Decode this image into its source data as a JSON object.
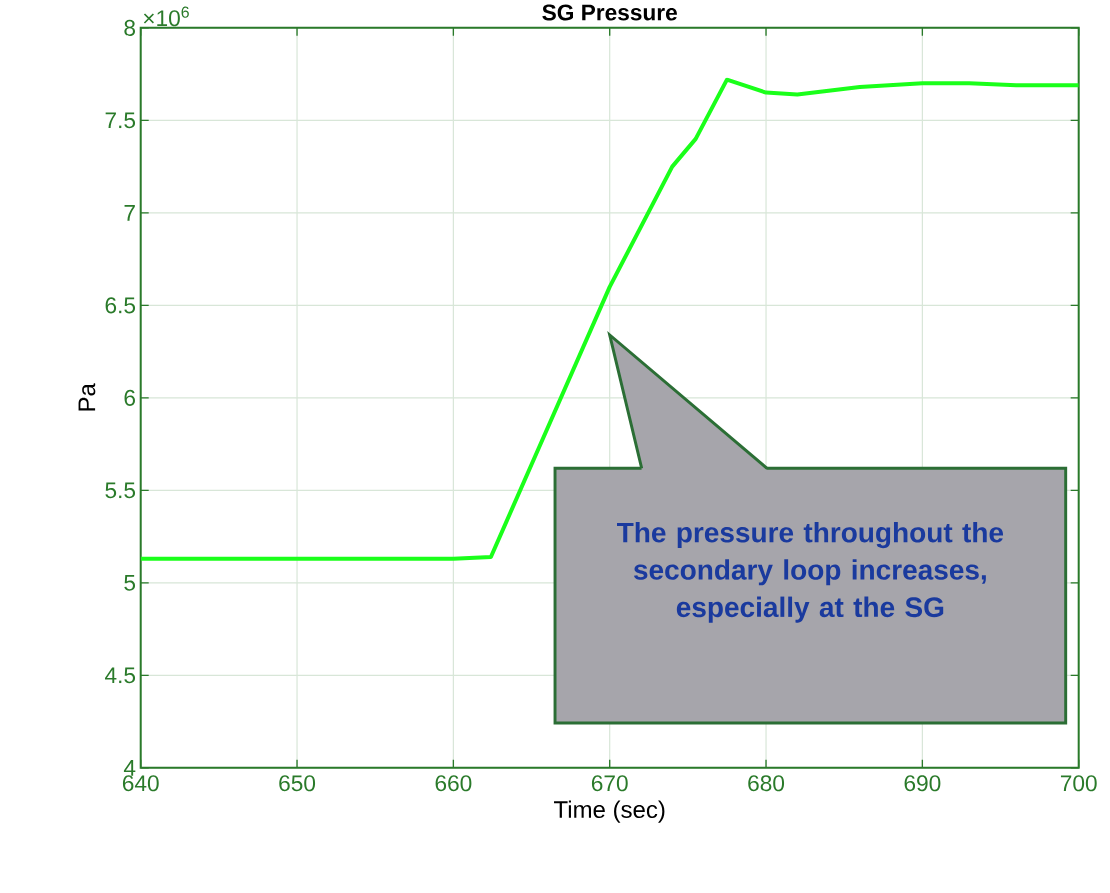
{
  "chart_data": {
    "type": "line",
    "title": "SG Pressure",
    "xlabel": "Time (sec)",
    "ylabel": "Pa",
    "x": [
      640,
      660,
      662.4,
      665,
      670,
      674,
      675.5,
      677.5,
      680,
      682,
      686,
      690,
      693,
      696,
      700
    ],
    "series": [
      {
        "color": "#1aff1a",
        "values": [
          5.13,
          5.13,
          5.14,
          5.64,
          6.6,
          7.25,
          7.4,
          7.72,
          7.65,
          7.64,
          7.68,
          7.7,
          7.7,
          7.69,
          7.69
        ]
      }
    ],
    "xlim": [
      640,
      700
    ],
    "xticks": [
      640,
      650,
      660,
      670,
      680,
      690,
      700
    ],
    "ylim": [
      4,
      8
    ],
    "yticks": [
      4,
      4.5,
      5,
      5.5,
      6,
      6.5,
      7,
      7.5,
      8
    ],
    "grid": true,
    "annotations": [
      "×10$^{6}$",
      "The pressure throughout the secondary loop increases, especially at the SG"
    ]
  }
}
